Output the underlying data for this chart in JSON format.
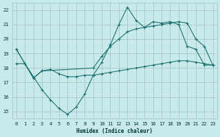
{
  "xlabel": "Humidex (Indice chaleur)",
  "bg_color": "#c8eaea",
  "grid_color": "#a0c0c0",
  "line_color": "#1a7070",
  "xlim": [
    -0.5,
    23.5
  ],
  "ylim": [
    14.5,
    22.5
  ],
  "yticks": [
    15,
    16,
    17,
    18,
    19,
    20,
    21,
    22
  ],
  "xticks": [
    0,
    1,
    2,
    3,
    4,
    5,
    6,
    7,
    8,
    9,
    10,
    11,
    12,
    13,
    14,
    15,
    16,
    17,
    18,
    19,
    20,
    21,
    22,
    23
  ],
  "line1_x": [
    0,
    1,
    3,
    4,
    5,
    6,
    7,
    8,
    9,
    10,
    11,
    12,
    13,
    14,
    15,
    16,
    17,
    18,
    19,
    20,
    21,
    22,
    23
  ],
  "line1_y": [
    19.3,
    18.3,
    16.5,
    15.8,
    15.2,
    14.8,
    15.3,
    16.2,
    17.5,
    18.4,
    19.6,
    21.0,
    22.2,
    21.3,
    20.8,
    21.2,
    21.1,
    21.2,
    21.0,
    19.5,
    19.3,
    18.2,
    18.2
  ],
  "line2_x": [
    0,
    2,
    3,
    9,
    10,
    11,
    12,
    13,
    14,
    15,
    16,
    17,
    18,
    19,
    20,
    21,
    22,
    23
  ],
  "line2_y": [
    19.3,
    17.3,
    17.8,
    18.0,
    18.8,
    19.5,
    20.0,
    20.5,
    20.7,
    20.8,
    20.9,
    21.0,
    21.1,
    21.2,
    21.1,
    20.0,
    19.5,
    18.2
  ],
  "line3_x": [
    0,
    1,
    2,
    3,
    4,
    5,
    6,
    7,
    8,
    9,
    10,
    11,
    12,
    13,
    14,
    15,
    16,
    17,
    18,
    19,
    20,
    21,
    22,
    23
  ],
  "line3_y": [
    18.3,
    18.3,
    17.3,
    17.8,
    17.9,
    17.6,
    17.4,
    17.4,
    17.5,
    17.5,
    17.6,
    17.7,
    17.8,
    17.9,
    18.0,
    18.1,
    18.2,
    18.3,
    18.4,
    18.5,
    18.5,
    18.4,
    18.3,
    18.2
  ]
}
